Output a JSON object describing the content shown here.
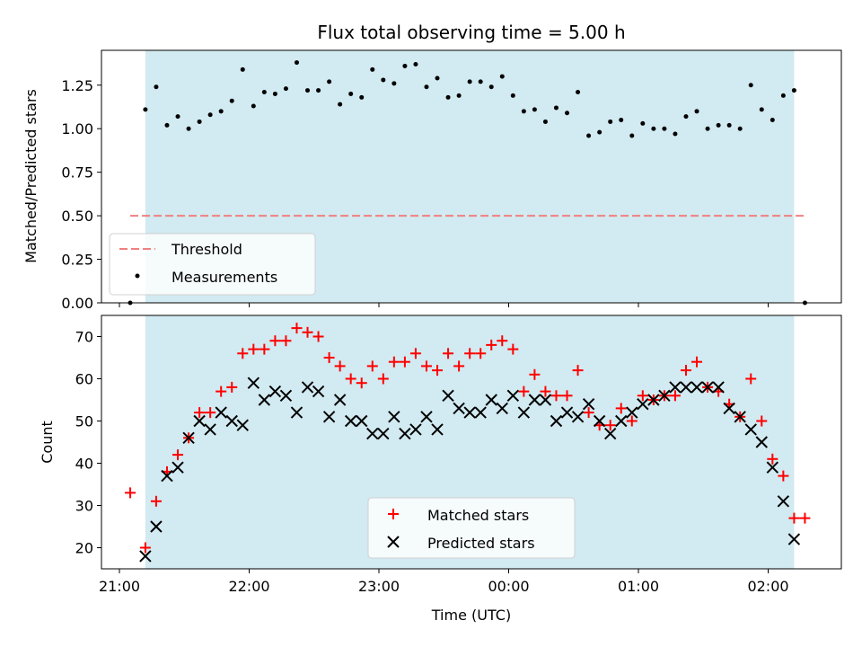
{
  "chart_data": [
    {
      "type": "scatter",
      "title": "Flux total observing time = 5.00 h",
      "xlabel": "",
      "ylabel": "Matched/Predicted stars",
      "ylim": [
        0,
        1.45
      ],
      "yticks": [
        "0.00",
        "0.25",
        "0.50",
        "0.75",
        "1.00",
        "1.25"
      ],
      "grid": false,
      "legend_position": "lower-left",
      "shaded_x_range": [
        "21:12",
        "02:12"
      ],
      "threshold": {
        "name": "Threshold",
        "value": 0.5,
        "x_start": "21:05",
        "x_end": "02:17",
        "color": "#f08080",
        "style": "dashed"
      },
      "series": [
        {
          "name": "Measurements",
          "marker": "dot",
          "color": "#000000",
          "x": [
            "21:05",
            "21:12",
            "21:17",
            "21:22",
            "21:27",
            "21:32",
            "21:37",
            "21:42",
            "21:47",
            "21:52",
            "21:57",
            "22:02",
            "22:07",
            "22:12",
            "22:17",
            "22:22",
            "22:27",
            "22:32",
            "22:37",
            "22:42",
            "22:47",
            "22:52",
            "22:57",
            "23:02",
            "23:07",
            "23:12",
            "23:17",
            "23:22",
            "23:27",
            "23:32",
            "23:37",
            "23:42",
            "23:47",
            "23:52",
            "23:57",
            "00:02",
            "00:07",
            "00:12",
            "00:17",
            "00:22",
            "00:27",
            "00:32",
            "00:37",
            "00:42",
            "00:47",
            "00:52",
            "00:57",
            "01:02",
            "01:07",
            "01:12",
            "01:17",
            "01:22",
            "01:27",
            "01:32",
            "01:37",
            "01:42",
            "01:47",
            "01:52",
            "01:57",
            "02:02",
            "02:07",
            "02:12",
            "02:17"
          ],
          "y": [
            0.0,
            1.11,
            1.24,
            1.02,
            1.07,
            1.0,
            1.04,
            1.08,
            1.1,
            1.16,
            1.34,
            1.13,
            1.21,
            1.2,
            1.23,
            1.38,
            1.22,
            1.22,
            1.27,
            1.14,
            1.2,
            1.18,
            1.34,
            1.28,
            1.26,
            1.36,
            1.37,
            1.24,
            1.29,
            1.18,
            1.19,
            1.27,
            1.27,
            1.24,
            1.3,
            1.19,
            1.1,
            1.11,
            1.04,
            1.12,
            1.09,
            1.21,
            0.96,
            0.98,
            1.04,
            1.05,
            0.96,
            1.03,
            1.0,
            1.0,
            0.97,
            1.07,
            1.1,
            1.0,
            1.02,
            1.02,
            1.0,
            1.25,
            1.11,
            1.05,
            1.19,
            1.22,
            0.0
          ]
        }
      ]
    },
    {
      "type": "scatter",
      "title": "",
      "xlabel": "Time (UTC)",
      "ylabel": "Count",
      "ylim": [
        15,
        75
      ],
      "yticks": [
        "20",
        "30",
        "40",
        "50",
        "60",
        "70"
      ],
      "xticks": [
        "21:00",
        "22:00",
        "23:00",
        "00:00",
        "01:00",
        "02:00"
      ],
      "grid": false,
      "legend_position": "lower-center",
      "shaded_x_range": [
        "21:12",
        "02:12"
      ],
      "series": [
        {
          "name": "Matched stars",
          "marker": "plus",
          "color": "#ff0000",
          "x": [
            "21:05",
            "21:12",
            "21:17",
            "21:22",
            "21:27",
            "21:32",
            "21:37",
            "21:42",
            "21:47",
            "21:52",
            "21:57",
            "22:02",
            "22:07",
            "22:12",
            "22:17",
            "22:22",
            "22:27",
            "22:32",
            "22:37",
            "22:42",
            "22:47",
            "22:52",
            "22:57",
            "23:02",
            "23:07",
            "23:12",
            "23:17",
            "23:22",
            "23:27",
            "23:32",
            "23:37",
            "23:42",
            "23:47",
            "23:52",
            "23:57",
            "00:02",
            "00:07",
            "00:12",
            "00:17",
            "00:22",
            "00:27",
            "00:32",
            "00:37",
            "00:42",
            "00:47",
            "00:52",
            "00:57",
            "01:02",
            "01:07",
            "01:12",
            "01:17",
            "01:22",
            "01:27",
            "01:32",
            "01:37",
            "01:42",
            "01:47",
            "01:52",
            "01:57",
            "02:02",
            "02:07",
            "02:12",
            "02:17"
          ],
          "y": [
            33,
            20,
            31,
            38,
            42,
            46,
            52,
            52,
            57,
            58,
            66,
            67,
            67,
            69,
            69,
            72,
            71,
            70,
            65,
            63,
            60,
            59,
            63,
            60,
            64,
            64,
            66,
            63,
            62,
            66,
            63,
            66,
            66,
            68,
            69,
            67,
            57,
            61,
            57,
            56,
            56,
            62,
            52,
            49,
            49,
            53,
            50,
            56,
            55,
            56,
            56,
            62,
            64,
            58,
            57,
            54,
            51,
            60,
            50,
            41,
            37,
            27,
            27
          ]
        },
        {
          "name": "Predicted stars",
          "marker": "x",
          "color": "#000000",
          "x": [
            "21:12",
            "21:17",
            "21:22",
            "21:27",
            "21:32",
            "21:37",
            "21:42",
            "21:47",
            "21:52",
            "21:57",
            "22:02",
            "22:07",
            "22:12",
            "22:17",
            "22:22",
            "22:27",
            "22:32",
            "22:37",
            "22:42",
            "22:47",
            "22:52",
            "22:57",
            "23:02",
            "23:07",
            "23:12",
            "23:17",
            "23:22",
            "23:27",
            "23:32",
            "23:37",
            "23:42",
            "23:47",
            "23:52",
            "23:57",
            "00:02",
            "00:07",
            "00:12",
            "00:17",
            "00:22",
            "00:27",
            "00:32",
            "00:37",
            "00:42",
            "00:47",
            "00:52",
            "00:57",
            "01:02",
            "01:07",
            "01:12",
            "01:17",
            "01:22",
            "01:27",
            "01:32",
            "01:37",
            "01:42",
            "01:47",
            "01:52",
            "01:57",
            "02:02",
            "02:07",
            "02:12"
          ],
          "y": [
            18,
            25,
            37,
            39,
            46,
            50,
            48,
            52,
            50,
            49,
            59,
            55,
            57,
            56,
            52,
            58,
            57,
            51,
            55,
            50,
            50,
            47,
            47,
            51,
            47,
            48,
            51,
            48,
            56,
            53,
            52,
            52,
            55,
            53,
            56,
            52,
            55,
            55,
            50,
            52,
            51,
            54,
            50,
            47,
            50,
            52,
            54,
            55,
            56,
            58,
            58,
            58,
            58,
            58,
            53,
            51,
            48,
            45,
            39,
            31,
            22
          ]
        }
      ]
    }
  ]
}
